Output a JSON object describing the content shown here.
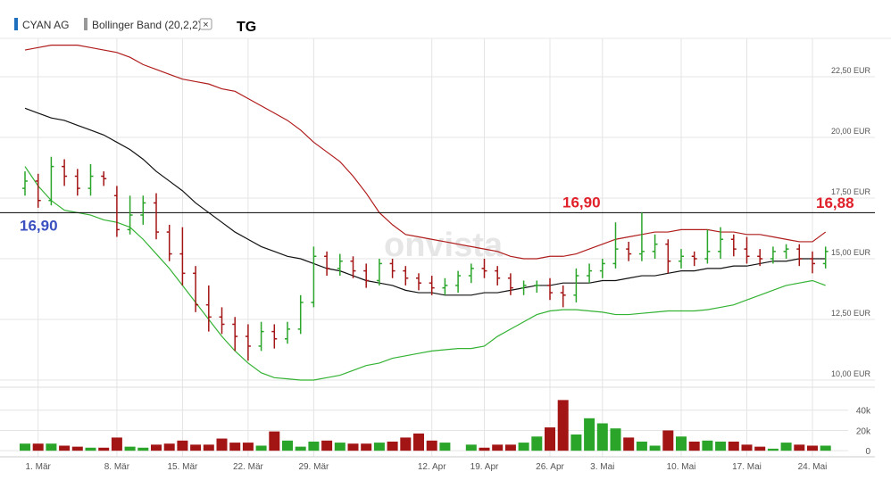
{
  "header": {
    "tag": "TG",
    "watermark": "onvista",
    "close_symbol": "×"
  },
  "chart_data": {
    "type": "ohlc",
    "name": "CYAN AG",
    "color": "#1f6fbf",
    "up_color": "#2aa52a",
    "down_color": "#a31515",
    "grid": true,
    "categories": [
      null,
      "1. Mär",
      null,
      null,
      null,
      null,
      null,
      "8. Mär",
      null,
      null,
      null,
      null,
      "15. Mär",
      null,
      null,
      null,
      null,
      "22. Mär",
      null,
      null,
      null,
      null,
      "29. Mär",
      null,
      null,
      null,
      null,
      null,
      null,
      null,
      null,
      "12. Apr",
      null,
      null,
      null,
      "19. Apr",
      null,
      null,
      null,
      null,
      "26. Apr",
      null,
      null,
      null,
      "3. Mai",
      null,
      null,
      null,
      null,
      null,
      "10. Mai",
      null,
      null,
      null,
      null,
      "17. Mai",
      null,
      null,
      null,
      null,
      "24. Mai",
      null
    ],
    "open": [
      17.9,
      18.2,
      17.4,
      18.8,
      18.4,
      17.9,
      18.4,
      17.6,
      16.2,
      16.8,
      17.3,
      16.1,
      15.2,
      14.4,
      13.1,
      12.6,
      12.3,
      11.8,
      11.4,
      12.0,
      11.7,
      12.1,
      13.2,
      15.1,
      14.6,
      14.9,
      14.5,
      14.1,
      14.8,
      14.5,
      14.2,
      14.0,
      13.8,
      13.9,
      14.3,
      14.6,
      14.5,
      14.2,
      13.8,
      13.9,
      13.9,
      13.6,
      13.5,
      14.3,
      14.5,
      14.8,
      15.4,
      15.2,
      15.3,
      15.6,
      14.9,
      15.1,
      15.0,
      15.3,
      15.8,
      15.4,
      15.1,
      15.0,
      15.3,
      15.4,
      15.0,
      14.8
    ],
    "high": [
      18.6,
      18.5,
      19.2,
      19.1,
      18.7,
      18.9,
      18.6,
      18.0,
      17.6,
      17.6,
      17.7,
      16.4,
      16.3,
      14.7,
      13.9,
      13.0,
      12.6,
      12.3,
      12.4,
      12.3,
      12.4,
      13.5,
      15.5,
      15.3,
      15.2,
      15.1,
      14.8,
      15.0,
      15.0,
      14.7,
      14.4,
      14.3,
      14.2,
      14.5,
      14.8,
      15.0,
      14.7,
      14.4,
      14.1,
      14.1,
      14.2,
      13.9,
      14.6,
      14.8,
      15.0,
      16.5,
      15.7,
      16.9,
      16.0,
      15.8,
      15.4,
      15.3,
      16.2,
      16.3,
      16.0,
      15.9,
      15.4,
      15.5,
      15.6,
      15.6,
      15.3,
      15.5
    ],
    "low": [
      17.6,
      17.1,
      17.2,
      18.0,
      17.6,
      17.6,
      18.0,
      15.9,
      16.0,
      16.4,
      15.8,
      14.9,
      13.9,
      12.8,
      12.0,
      11.9,
      11.2,
      10.8,
      11.2,
      11.3,
      11.5,
      11.9,
      13.0,
      14.3,
      14.3,
      14.2,
      13.8,
      13.9,
      14.2,
      13.9,
      13.7,
      13.5,
      13.5,
      13.6,
      14.0,
      14.2,
      13.9,
      13.5,
      13.5,
      13.6,
      13.3,
      13.0,
      13.2,
      14.0,
      14.2,
      14.6,
      14.9,
      14.9,
      15.0,
      14.4,
      14.6,
      14.7,
      14.8,
      15.0,
      15.1,
      14.8,
      14.7,
      14.8,
      15.0,
      14.7,
      14.4,
      14.6
    ],
    "close": [
      18.2,
      17.4,
      18.8,
      18.4,
      17.9,
      18.4,
      18.3,
      16.2,
      16.8,
      17.3,
      16.1,
      15.2,
      14.4,
      13.1,
      12.6,
      12.3,
      11.8,
      11.4,
      12.0,
      11.7,
      12.1,
      13.2,
      15.1,
      14.6,
      14.9,
      14.5,
      14.1,
      14.8,
      14.5,
      14.2,
      14.0,
      13.8,
      13.9,
      14.3,
      14.6,
      14.5,
      14.2,
      13.8,
      13.9,
      13.9,
      13.6,
      13.5,
      14.3,
      14.5,
      14.8,
      15.4,
      15.2,
      15.3,
      15.6,
      14.9,
      15.1,
      15.0,
      15.3,
      15.8,
      15.4,
      15.1,
      15.0,
      15.3,
      15.4,
      15.0,
      14.8,
      15.3
    ],
    "overlay": {
      "name": "Bollinger Band (20,2,2)",
      "color": "#999999",
      "lines": [
        {
          "color": "#b01c1c",
          "values": [
            23.6,
            23.7,
            23.8,
            23.8,
            23.8,
            23.7,
            23.6,
            23.5,
            23.3,
            23.0,
            22.8,
            22.6,
            22.4,
            22.3,
            22.2,
            22.0,
            21.9,
            21.6,
            21.3,
            21.0,
            20.7,
            20.3,
            19.8,
            19.4,
            19.0,
            18.4,
            17.7,
            16.9,
            16.4,
            16.0,
            15.9,
            15.8,
            15.7,
            15.6,
            15.5,
            15.4,
            15.3,
            15.1,
            15.0,
            15.0,
            15.1,
            15.1,
            15.2,
            15.4,
            15.6,
            15.8,
            15.9,
            16.0,
            16.1,
            16.1,
            16.2,
            16.2,
            16.2,
            16.1,
            16.1,
            16.0,
            16.0,
            15.9,
            15.8,
            15.7,
            15.7,
            16.1
          ]
        },
        {
          "color": "#111111",
          "values": [
            21.2,
            21.0,
            20.8,
            20.7,
            20.5,
            20.3,
            20.1,
            19.8,
            19.5,
            19.1,
            18.6,
            18.2,
            17.8,
            17.3,
            16.9,
            16.5,
            16.1,
            15.8,
            15.5,
            15.3,
            15.1,
            15.0,
            14.8,
            14.6,
            14.5,
            14.3,
            14.1,
            14.0,
            13.9,
            13.7,
            13.6,
            13.6,
            13.5,
            13.5,
            13.5,
            13.6,
            13.6,
            13.7,
            13.8,
            13.9,
            13.9,
            14.0,
            14.0,
            14.0,
            14.1,
            14.1,
            14.2,
            14.3,
            14.3,
            14.4,
            14.5,
            14.5,
            14.6,
            14.6,
            14.7,
            14.7,
            14.8,
            14.9,
            14.9,
            15.0,
            15.0,
            15.0
          ]
        },
        {
          "color": "#33b233",
          "values": [
            18.8,
            18.0,
            17.4,
            17.0,
            16.9,
            16.8,
            16.6,
            16.5,
            16.3,
            15.8,
            15.2,
            14.6,
            13.9,
            13.2,
            12.5,
            11.8,
            11.2,
            10.7,
            10.3,
            10.1,
            10.05,
            10.0,
            10.0,
            10.1,
            10.2,
            10.4,
            10.6,
            10.7,
            10.9,
            11.0,
            11.1,
            11.2,
            11.25,
            11.3,
            11.3,
            11.4,
            11.8,
            12.1,
            12.4,
            12.7,
            12.85,
            12.9,
            12.9,
            12.85,
            12.8,
            12.7,
            12.7,
            12.75,
            12.8,
            12.85,
            12.85,
            12.85,
            12.9,
            13.0,
            13.1,
            13.3,
            13.5,
            13.7,
            13.9,
            14.0,
            14.1,
            13.9
          ]
        }
      ]
    },
    "ylim": [
      9.78,
      24.08
    ],
    "yticks": [
      {
        "value": 10,
        "label": "10,00 EUR"
      },
      {
        "value": 12.5,
        "label": "12,50 EUR"
      },
      {
        "value": 15,
        "label": "15,00 EUR"
      },
      {
        "value": 17.5,
        "label": "17,50 EUR"
      },
      {
        "value": 20,
        "label": "20,00 EUR"
      },
      {
        "value": 22.5,
        "label": "22,50 EUR"
      }
    ],
    "reference_line": {
      "value": 16.9,
      "label": "16,90",
      "color": "#000000",
      "label_color": "#3a4fc0"
    },
    "annotations": [
      {
        "value": 16.9,
        "label": "16,90"
      },
      {
        "value": 16.88,
        "label": "16,88"
      }
    ],
    "annotation_color": "#e0202a",
    "volume": {
      "values": [
        7000,
        7000,
        7000,
        5000,
        4000,
        3000,
        3000,
        13000,
        4000,
        3000,
        6000,
        7000,
        10000,
        6000,
        6000,
        12000,
        8000,
        8000,
        5000,
        19000,
        10000,
        4000,
        9000,
        10000,
        8000,
        7000,
        7000,
        8000,
        9000,
        13000,
        17000,
        10000,
        8000,
        null,
        6000,
        3000,
        6000,
        6000,
        8000,
        14000,
        23000,
        50000,
        16000,
        32000,
        27000,
        22000,
        13000,
        9000,
        5000,
        20000,
        14000,
        9000,
        10000,
        9000,
        9000,
        6000,
        4000,
        2000,
        8000,
        6000,
        5000,
        5000
      ],
      "ylim": [
        -6000,
        60000
      ],
      "yticks": [
        0,
        {
          "value": 20000,
          "label": "20k"
        },
        {
          "value": 40000,
          "label": "40k"
        }
      ]
    }
  }
}
